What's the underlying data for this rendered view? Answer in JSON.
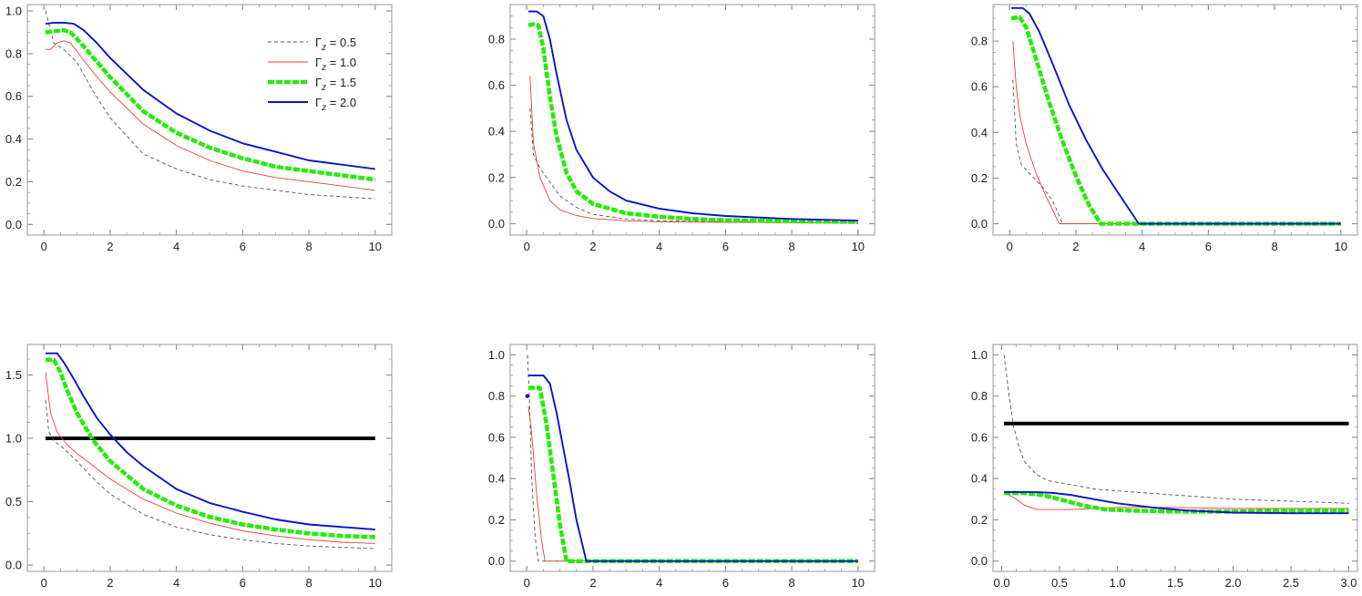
{
  "figure": {
    "legend": {
      "placement": "top-right of first panel",
      "items": [
        {
          "label_main": "Γ",
          "label_sub": "z",
          "label_rest": " = 0.5",
          "color": "#555555",
          "style": "dashed"
        },
        {
          "label_main": "Γ",
          "label_sub": "z",
          "label_rest": " = 1.0",
          "color": "#e8423a",
          "style": "thin"
        },
        {
          "label_main": "Γ",
          "label_sub": "z",
          "label_rest": " = 1.5",
          "color": "#22ee00",
          "style": "thick-dashed"
        },
        {
          "label_main": "Γ",
          "label_sub": "z",
          "label_rest": " = 2.0",
          "color": "#0a14c8",
          "style": "solid"
        }
      ]
    }
  },
  "chart_data": [
    {
      "type": "line",
      "xlim": [
        -0.5,
        10.5
      ],
      "ylim": [
        -0.05,
        1.03
      ],
      "xticks": [
        0,
        2,
        4,
        6,
        8,
        10
      ],
      "yticks": [
        0.0,
        0.2,
        0.4,
        0.6,
        0.8,
        1.0
      ],
      "xtick_labels": [
        "0",
        "2",
        "4",
        "6",
        "8",
        "10"
      ],
      "ytick_labels": [
        "0.0",
        "0.2",
        "0.4",
        "0.6",
        "0.8",
        "1.0"
      ],
      "series": [
        {
          "name": "Γz = 0.5",
          "x": [
            0.05,
            0.3,
            0.6,
            1,
            1.5,
            2,
            3,
            4,
            5,
            6,
            7,
            8,
            9,
            10
          ],
          "y": [
            1.0,
            0.85,
            0.82,
            0.76,
            0.62,
            0.5,
            0.33,
            0.26,
            0.21,
            0.18,
            0.16,
            0.14,
            0.13,
            0.12
          ]
        },
        {
          "name": "Γz = 1.0",
          "x": [
            0.05,
            0.2,
            0.4,
            0.6,
            0.8,
            1,
            1.5,
            2,
            3,
            4,
            5,
            6,
            7,
            8,
            9,
            10
          ],
          "y": [
            0.82,
            0.82,
            0.85,
            0.86,
            0.85,
            0.81,
            0.71,
            0.62,
            0.47,
            0.37,
            0.3,
            0.25,
            0.22,
            0.2,
            0.18,
            0.16
          ]
        },
        {
          "name": "Γz = 1.5",
          "x": [
            0.05,
            0.3,
            0.6,
            0.8,
            1,
            1.5,
            2,
            3,
            4,
            5,
            6,
            7,
            8,
            9,
            10
          ],
          "y": [
            0.9,
            0.905,
            0.91,
            0.9,
            0.87,
            0.78,
            0.69,
            0.53,
            0.43,
            0.36,
            0.31,
            0.27,
            0.25,
            0.23,
            0.21
          ]
        },
        {
          "name": "Γz = 2.0",
          "x": [
            0.05,
            0.3,
            0.6,
            0.9,
            1.2,
            1.6,
            2,
            3,
            4,
            5,
            6,
            7,
            8,
            9,
            10
          ],
          "y": [
            0.94,
            0.945,
            0.945,
            0.94,
            0.91,
            0.85,
            0.78,
            0.63,
            0.52,
            0.44,
            0.38,
            0.34,
            0.3,
            0.28,
            0.26
          ]
        }
      ]
    },
    {
      "type": "line",
      "xlim": [
        -0.5,
        10.5
      ],
      "ylim": [
        -0.05,
        0.95
      ],
      "xticks": [
        0,
        2,
        4,
        6,
        8,
        10
      ],
      "yticks": [
        0.0,
        0.2,
        0.4,
        0.6,
        0.8
      ],
      "xtick_labels": [
        "0",
        "2",
        "4",
        "6",
        "8",
        "10"
      ],
      "ytick_labels": [
        "0.0",
        "0.2",
        "0.4",
        "0.6",
        "0.8"
      ],
      "series": [
        {
          "name": "Γz = 0.5",
          "x": [
            0.1,
            0.2,
            0.4,
            0.7,
            1,
            1.5,
            2,
            3,
            4,
            6,
            8,
            10
          ],
          "y": [
            0.5,
            0.3,
            0.24,
            0.18,
            0.12,
            0.07,
            0.04,
            0.02,
            0.012,
            0.008,
            0.005,
            0.004
          ]
        },
        {
          "name": "Γz = 1.0",
          "x": [
            0.1,
            0.2,
            0.4,
            0.7,
            1,
            1.5,
            2,
            3,
            4,
            6,
            8,
            10
          ],
          "y": [
            0.64,
            0.35,
            0.2,
            0.1,
            0.06,
            0.035,
            0.022,
            0.012,
            0.008,
            0.005,
            0.004,
            0.003
          ]
        },
        {
          "name": "Γz = 1.5",
          "x": [
            0.05,
            0.2,
            0.35,
            0.5,
            0.7,
            0.9,
            1.2,
            1.5,
            2,
            3,
            4,
            5,
            6,
            8,
            10
          ],
          "y": [
            0.86,
            0.865,
            0.86,
            0.76,
            0.55,
            0.38,
            0.22,
            0.14,
            0.085,
            0.045,
            0.03,
            0.02,
            0.015,
            0.01,
            0.007
          ]
        },
        {
          "name": "Γz = 2.0",
          "x": [
            0.05,
            0.3,
            0.5,
            0.7,
            0.9,
            1.2,
            1.5,
            2,
            2.5,
            3,
            4,
            5,
            6,
            8,
            10
          ],
          "y": [
            0.92,
            0.92,
            0.9,
            0.8,
            0.65,
            0.45,
            0.32,
            0.2,
            0.14,
            0.1,
            0.065,
            0.045,
            0.033,
            0.02,
            0.013
          ]
        }
      ]
    },
    {
      "type": "line",
      "xlim": [
        -0.5,
        10.5
      ],
      "ylim": [
        -0.05,
        0.96
      ],
      "xticks": [
        0,
        2,
        4,
        6,
        8,
        10
      ],
      "yticks": [
        0.0,
        0.2,
        0.4,
        0.6,
        0.8
      ],
      "xtick_labels": [
        "0",
        "2",
        "4",
        "6",
        "8",
        "10"
      ],
      "ytick_labels": [
        "0.0",
        "0.2",
        "0.4",
        "0.6",
        "0.8"
      ],
      "series": [
        {
          "name": "Γz = 0.5",
          "x": [
            0.1,
            0.2,
            0.35,
            0.6,
            1,
            1.3,
            1.6,
            10
          ],
          "y": [
            0.63,
            0.35,
            0.26,
            0.22,
            0.16,
            0.1,
            0.0,
            0.0
          ]
        },
        {
          "name": "Γz = 1.0",
          "x": [
            0.1,
            0.2,
            0.3,
            0.5,
            0.8,
            1.1,
            1.5,
            10
          ],
          "y": [
            0.8,
            0.6,
            0.48,
            0.35,
            0.22,
            0.12,
            0.0,
            0.0
          ]
        },
        {
          "name": "Γz = 1.5",
          "x": [
            0.05,
            0.3,
            0.5,
            0.8,
            1.2,
            1.6,
            2,
            2.4,
            2.75,
            10
          ],
          "y": [
            0.9,
            0.905,
            0.86,
            0.72,
            0.53,
            0.36,
            0.21,
            0.08,
            0.0,
            0.0
          ]
        },
        {
          "name": "Γz = 2.0",
          "x": [
            0.05,
            0.4,
            0.6,
            0.9,
            1.3,
            1.8,
            2.3,
            2.8,
            3.3,
            3.9,
            10
          ],
          "y": [
            0.945,
            0.945,
            0.92,
            0.84,
            0.7,
            0.52,
            0.37,
            0.24,
            0.13,
            0.0,
            0.0
          ]
        }
      ]
    },
    {
      "type": "line",
      "xlim": [
        -0.5,
        10.5
      ],
      "ylim": [
        -0.05,
        1.74
      ],
      "xticks": [
        0,
        2,
        4,
        6,
        8,
        10
      ],
      "yticks": [
        0.0,
        0.5,
        1.0,
        1.5
      ],
      "xtick_labels": [
        "0",
        "2",
        "4",
        "6",
        "8",
        "10"
      ],
      "ytick_labels": [
        "0.0",
        "0.5",
        "1.0",
        "1.5"
      ],
      "reference_line": {
        "y": 1.0,
        "x": [
          0.05,
          10
        ],
        "color": "#000000"
      },
      "series": [
        {
          "name": "Γz = 0.5",
          "x": [
            0.05,
            0.15,
            0.3,
            0.6,
            1,
            1.5,
            2,
            3,
            4,
            5,
            6,
            7,
            8,
            9,
            10
          ],
          "y": [
            1.3,
            1.05,
            0.98,
            0.92,
            0.82,
            0.68,
            0.56,
            0.4,
            0.3,
            0.24,
            0.2,
            0.17,
            0.15,
            0.14,
            0.13
          ]
        },
        {
          "name": "Γz = 1.0",
          "x": [
            0.05,
            0.2,
            0.4,
            0.7,
            1,
            1.5,
            2,
            3,
            4,
            5,
            6,
            7,
            8,
            9,
            10
          ],
          "y": [
            1.52,
            1.2,
            1.05,
            0.95,
            0.88,
            0.78,
            0.68,
            0.52,
            0.41,
            0.33,
            0.27,
            0.23,
            0.2,
            0.18,
            0.17
          ]
        },
        {
          "name": "Γz = 1.5",
          "x": [
            0.05,
            0.3,
            0.5,
            0.7,
            1,
            1.5,
            2,
            3,
            4,
            5,
            6,
            7,
            8,
            9,
            10
          ],
          "y": [
            1.62,
            1.62,
            1.52,
            1.38,
            1.2,
            0.98,
            0.82,
            0.6,
            0.47,
            0.38,
            0.32,
            0.28,
            0.25,
            0.23,
            0.22
          ]
        },
        {
          "name": "Γz = 2.0",
          "x": [
            0.05,
            0.4,
            0.6,
            0.9,
            1.2,
            1.6,
            2,
            2.5,
            3,
            4,
            5,
            6,
            7,
            8,
            9,
            10
          ],
          "y": [
            1.67,
            1.67,
            1.6,
            1.47,
            1.33,
            1.16,
            1.03,
            0.89,
            0.78,
            0.6,
            0.49,
            0.42,
            0.36,
            0.32,
            0.3,
            0.28
          ]
        }
      ]
    },
    {
      "type": "line",
      "xlim": [
        -0.5,
        10.5
      ],
      "ylim": [
        -0.05,
        1.05
      ],
      "xticks": [
        0,
        2,
        4,
        6,
        8,
        10
      ],
      "yticks": [
        0.0,
        0.2,
        0.4,
        0.6,
        0.8,
        1.0
      ],
      "xtick_labels": [
        "0",
        "2",
        "4",
        "6",
        "8",
        "10"
      ],
      "ytick_labels": [
        "0.0",
        "0.2",
        "0.4",
        "0.6",
        "0.8",
        "1.0"
      ],
      "series": [
        {
          "name": "Γz = 0.5",
          "x": [
            0.02,
            0.08,
            0.15,
            0.25,
            0.35,
            10
          ],
          "y": [
            1.0,
            0.8,
            0.4,
            0.12,
            0.0,
            0.0
          ]
        },
        {
          "name": "Γz = 1.0",
          "x": [
            0.05,
            0.15,
            0.3,
            0.45,
            0.55,
            10
          ],
          "y": [
            0.75,
            0.62,
            0.32,
            0.1,
            0.0,
            0.0
          ]
        },
        {
          "name": "Γz = 1.5",
          "x": [
            0.05,
            0.4,
            0.6,
            0.8,
            1.0,
            1.2,
            10
          ],
          "y": [
            0.84,
            0.84,
            0.66,
            0.42,
            0.18,
            0.0,
            0.0
          ]
        },
        {
          "name": "Γz = 2.0",
          "x": [
            0.05,
            0.5,
            0.7,
            0.9,
            1.1,
            1.3,
            1.5,
            1.8,
            10
          ],
          "y": [
            0.9,
            0.9,
            0.86,
            0.72,
            0.55,
            0.38,
            0.2,
            0.0,
            0.0
          ]
        }
      ],
      "markers": [
        {
          "x": 0.02,
          "y": 0.8,
          "color": "#0a14c8"
        }
      ]
    },
    {
      "type": "line",
      "xlim": [
        -0.075,
        3.075
      ],
      "ylim": [
        -0.05,
        1.05
      ],
      "xticks": [
        0.0,
        0.5,
        1.0,
        1.5,
        2.0,
        2.5,
        3.0
      ],
      "yticks": [
        0.0,
        0.2,
        0.4,
        0.6,
        0.8,
        1.0
      ],
      "xtick_labels": [
        "0.0",
        "0.5",
        "1.0",
        "1.5",
        "2.0",
        "2.5",
        "3.0"
      ],
      "ytick_labels": [
        "0.0",
        "0.2",
        "0.4",
        "0.6",
        "0.8",
        "1.0"
      ],
      "reference_line": {
        "y": 0.667,
        "x": [
          0.02,
          3.0
        ],
        "color": "#000000"
      },
      "series": [
        {
          "name": "Γz = 0.5",
          "x": [
            0.02,
            0.06,
            0.1,
            0.15,
            0.2,
            0.3,
            0.4,
            0.6,
            0.8,
            1.0,
            1.5,
            2,
            2.5,
            3
          ],
          "y": [
            1.0,
            0.82,
            0.66,
            0.55,
            0.48,
            0.42,
            0.39,
            0.37,
            0.35,
            0.34,
            0.32,
            0.3,
            0.29,
            0.28
          ]
        },
        {
          "name": "Γz = 1.0",
          "x": [
            0.02,
            0.1,
            0.2,
            0.3,
            0.4,
            0.6,
            0.8,
            1,
            1.5,
            2,
            2.5,
            3
          ],
          "y": [
            0.33,
            0.31,
            0.27,
            0.25,
            0.25,
            0.25,
            0.255,
            0.26,
            0.26,
            0.255,
            0.255,
            0.255
          ]
        },
        {
          "name": "Γz = 1.5",
          "x": [
            0.02,
            0.2,
            0.35,
            0.5,
            0.7,
            0.9,
            1.1,
            1.5,
            2,
            2.5,
            3
          ],
          "y": [
            0.33,
            0.33,
            0.32,
            0.3,
            0.27,
            0.25,
            0.245,
            0.24,
            0.24,
            0.245,
            0.245
          ]
        },
        {
          "name": "Γz = 2.0",
          "x": [
            0.02,
            0.3,
            0.45,
            0.6,
            0.8,
            1.0,
            1.3,
            1.6,
            2,
            2.5,
            3
          ],
          "y": [
            0.335,
            0.335,
            0.33,
            0.32,
            0.3,
            0.28,
            0.26,
            0.245,
            0.235,
            0.232,
            0.232
          ]
        }
      ]
    }
  ]
}
